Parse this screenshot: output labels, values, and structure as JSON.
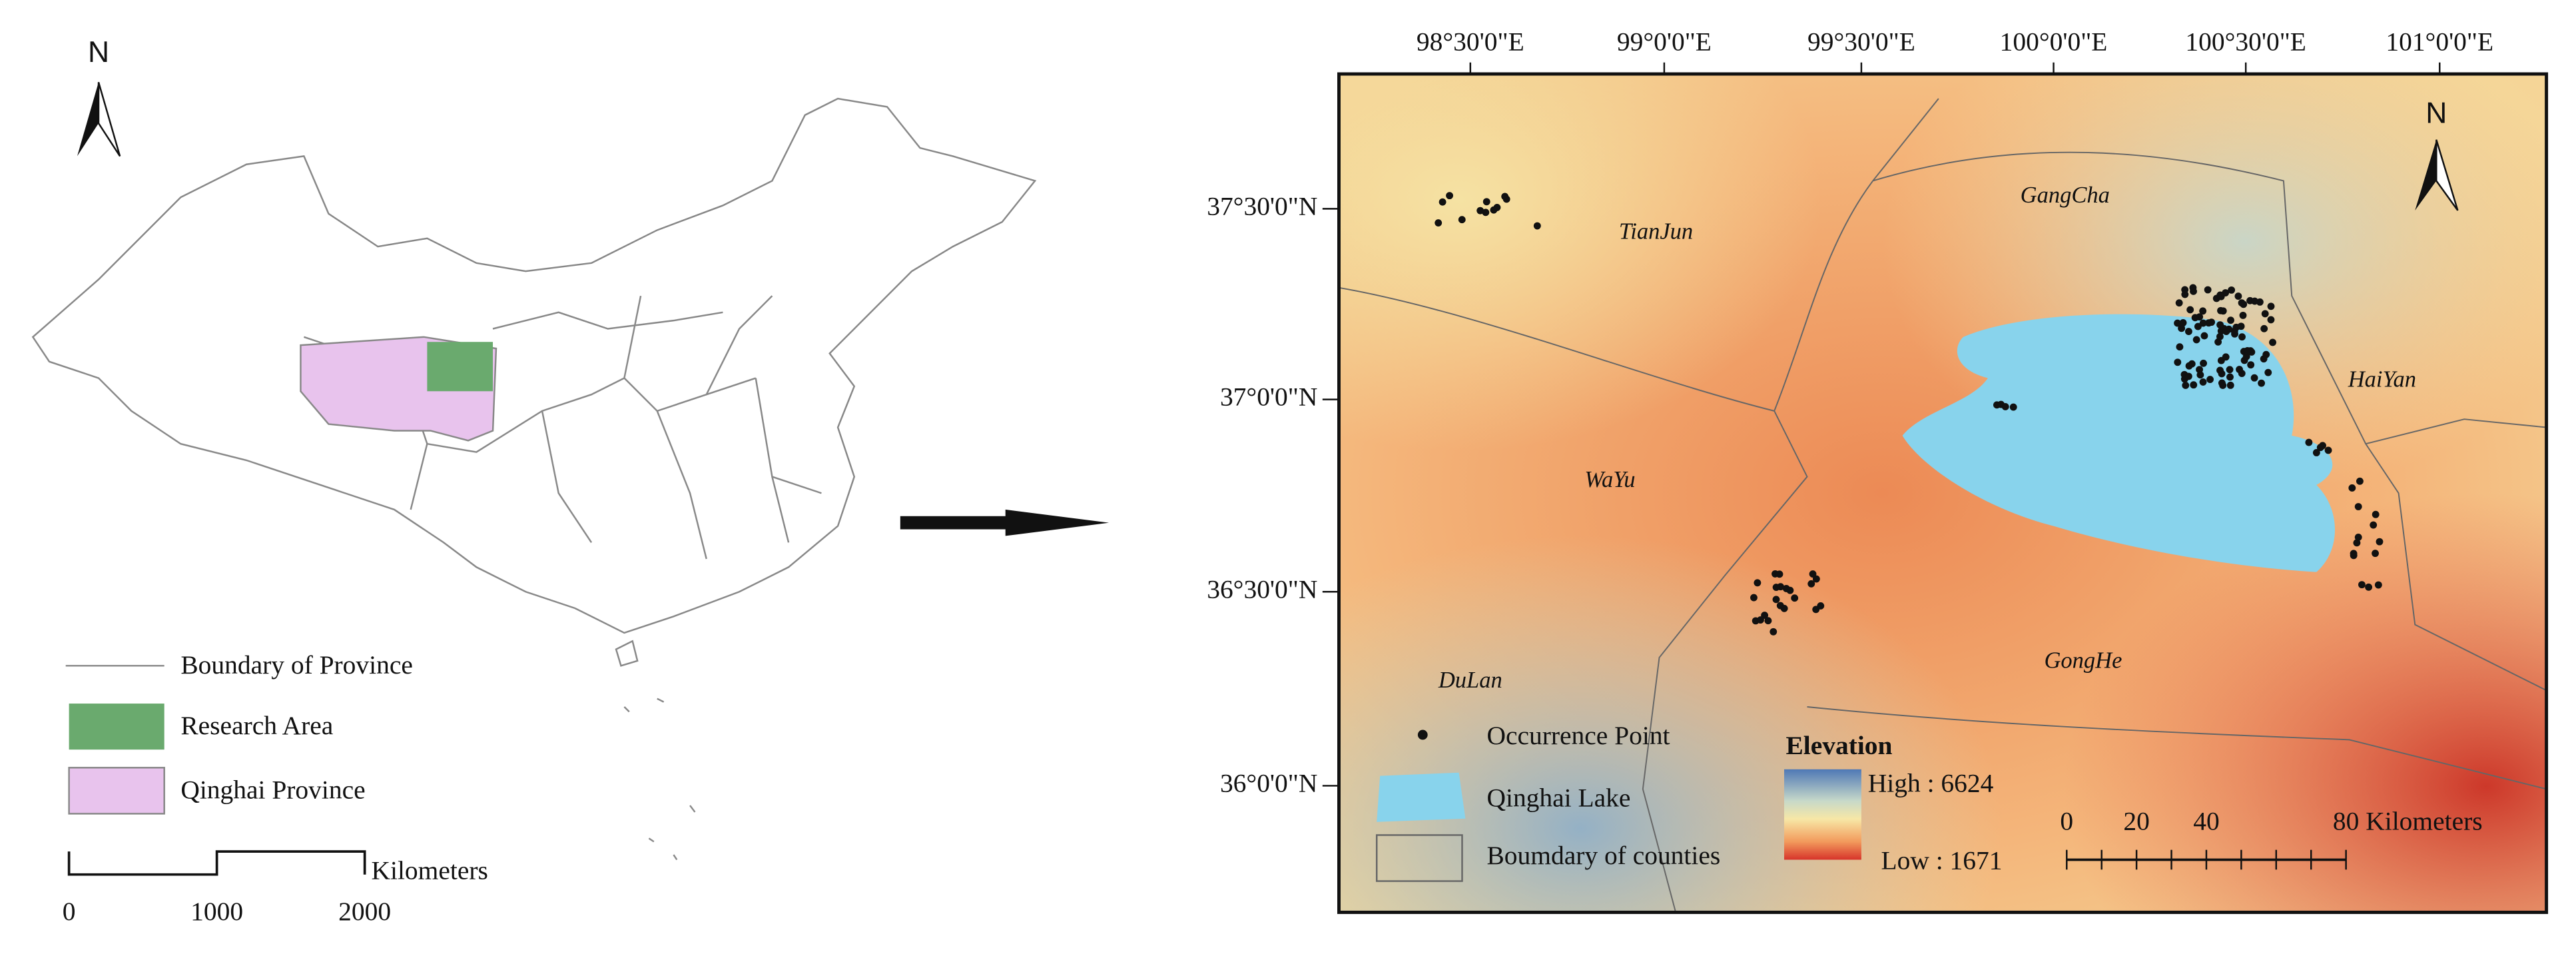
{
  "left_map": {
    "north": "N",
    "legend": {
      "boundary": "Boundary of Province",
      "research": "Research Area",
      "province": "Qinghai Province"
    },
    "scale": {
      "ticks": [
        0,
        1000,
        2000
      ],
      "unit": "Kilometers"
    }
  },
  "right_map": {
    "north": "N",
    "longitudes": [
      "98°30'0\"E",
      "99°0'0\"E",
      "99°30'0\"E",
      "100°0'0\"E",
      "100°30'0\"E",
      "101°0'0\"E"
    ],
    "latitudes": [
      "37°30'0\"N",
      "37°0'0\"N",
      "36°30'0\"N",
      "36°0'0\"N"
    ],
    "counties": [
      "TianJun",
      "GangCha",
      "HaiYan",
      "WaYu",
      "GongHe",
      "DuLan"
    ],
    "legend": {
      "point": "Occurrence Point",
      "lake": "Qinghai Lake",
      "counties": "Boumdary of counties"
    },
    "elevation": {
      "title": "Elevation",
      "high": "High : 6624",
      "low": "Low : 1671"
    },
    "scale": {
      "ticks": [
        0,
        20,
        40,
        80
      ],
      "unit": "Kilometers"
    }
  }
}
